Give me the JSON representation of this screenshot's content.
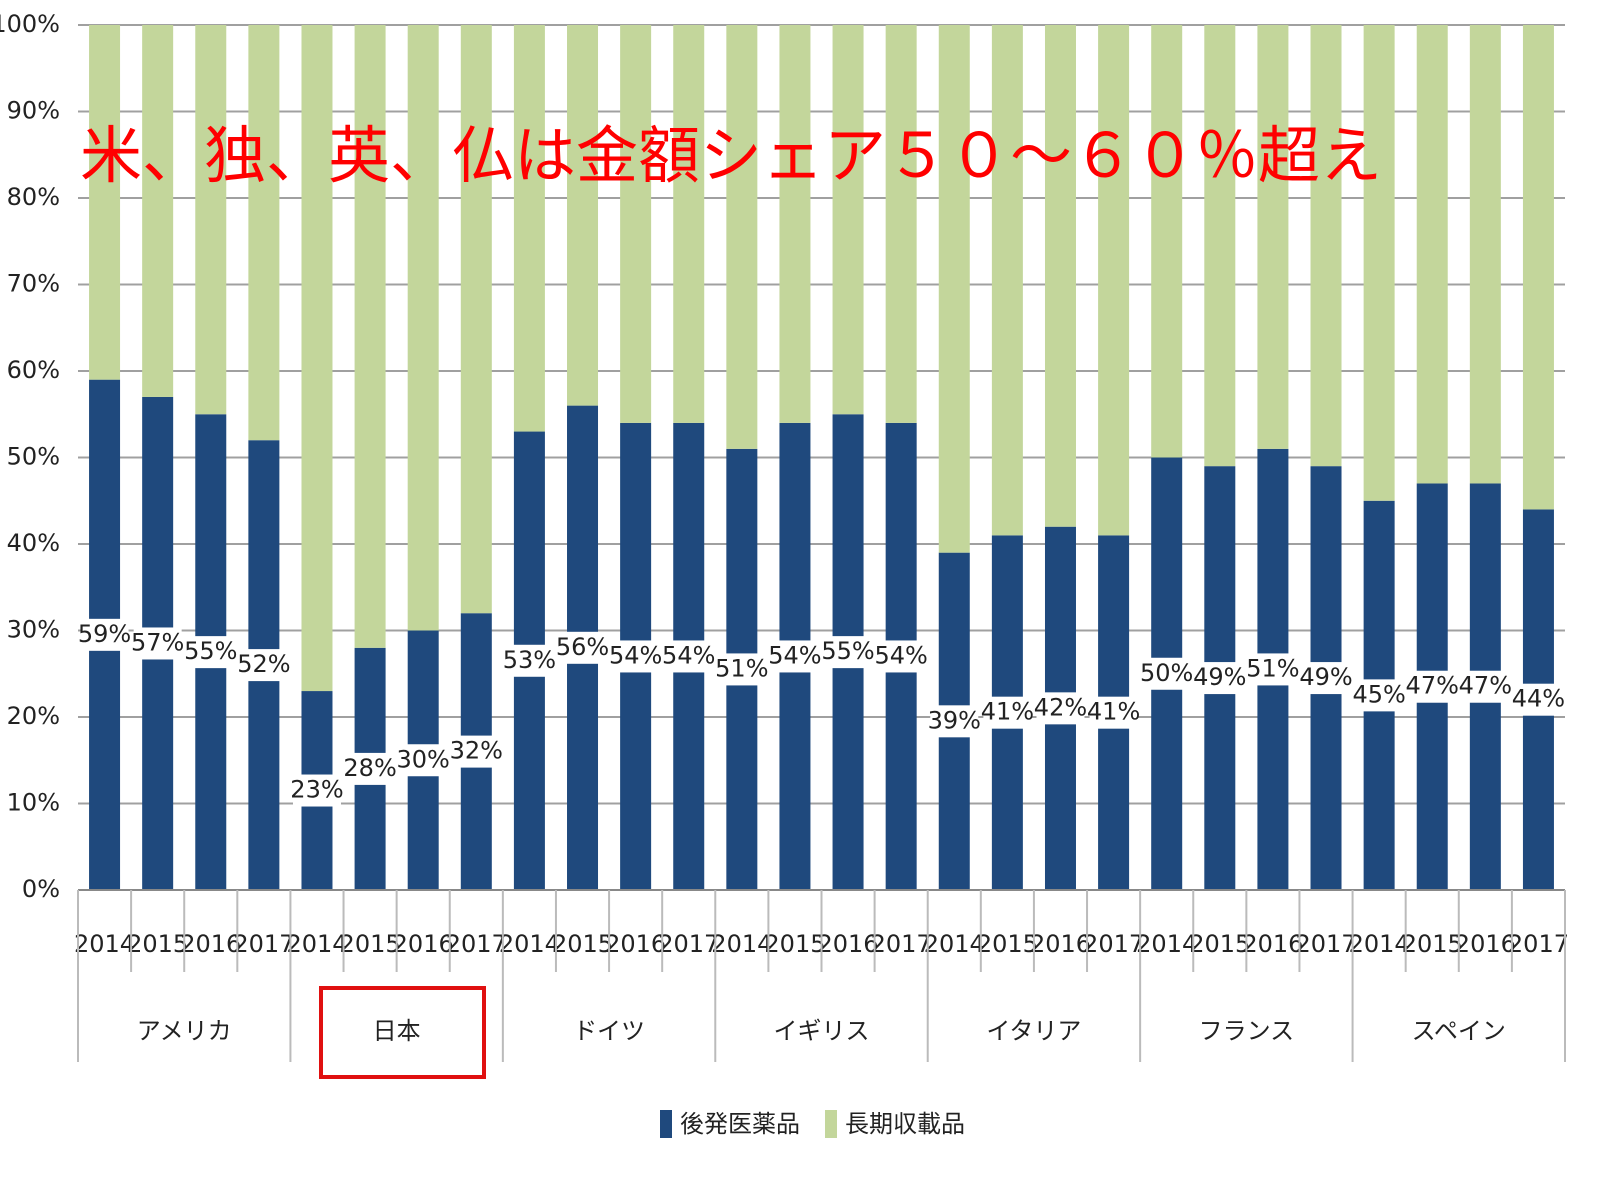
{
  "chart_data": {
    "type": "stacked_bar",
    "annotation": "米、独、英、仏は金額シェア５０～６０％超え",
    "categories": [
      "2014",
      "2015",
      "2016",
      "2017",
      "2014",
      "2015",
      "2016",
      "2017",
      "2014",
      "2015",
      "2016",
      "2017",
      "2014",
      "2015",
      "2016",
      "2017",
      "2014",
      "2015",
      "2016",
      "2017",
      "2014",
      "2015",
      "2016",
      "2017",
      "2014",
      "2015",
      "2016",
      "2017"
    ],
    "groups": [
      "アメリカ",
      "日本",
      "ドイツ",
      "イギリス",
      "イタリア",
      "フランス",
      "スペイン"
    ],
    "series": [
      {
        "name": "後発医薬品",
        "color": "#1f497d",
        "values": [
          59,
          57,
          55,
          52,
          23,
          28,
          30,
          32,
          53,
          56,
          54,
          54,
          51,
          54,
          55,
          54,
          39,
          41,
          42,
          41,
          50,
          49,
          51,
          49,
          45,
          47,
          47,
          44
        ],
        "value_labels": [
          "59%",
          "57%",
          "55%",
          "52%",
          "23%",
          "28%",
          "30%",
          "32%",
          "53%",
          "56%",
          "54%",
          "54%",
          "51%",
          "54%",
          "55%",
          "54%",
          "39%",
          "41%",
          "42%",
          "41%",
          "50%",
          "49%",
          "51%",
          "49%",
          "45%",
          "47%",
          "47%",
          "44%"
        ]
      },
      {
        "name": "長期収載品",
        "color": "#c3d69b",
        "values": [
          41,
          43,
          45,
          48,
          77,
          72,
          70,
          68,
          47,
          44,
          46,
          46,
          49,
          46,
          45,
          46,
          61,
          59,
          58,
          59,
          50,
          51,
          49,
          51,
          55,
          53,
          53,
          56
        ]
      }
    ],
    "ylim": [
      0,
      100
    ],
    "yticks": [
      {
        "value": 0,
        "label": "0%"
      },
      {
        "value": 10,
        "label": "10%"
      },
      {
        "value": 20,
        "label": "20%"
      },
      {
        "value": 30,
        "label": "30%"
      },
      {
        "value": 40,
        "label": "40%"
      },
      {
        "value": 50,
        "label": "50%"
      },
      {
        "value": 60,
        "label": "60%"
      },
      {
        "value": 70,
        "label": "70%"
      },
      {
        "value": 80,
        "label": "80%"
      },
      {
        "value": 90,
        "label": "90%"
      },
      {
        "value": 100,
        "label": "100%"
      }
    ],
    "grid": true
  }
}
